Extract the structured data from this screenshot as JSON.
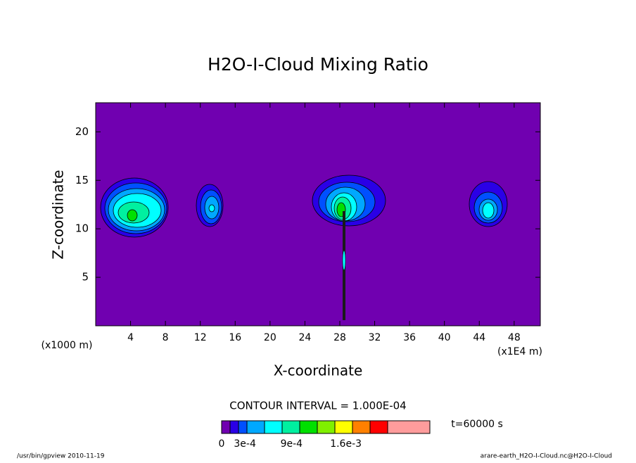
{
  "chart_data": {
    "type": "contour",
    "title": "H2O-I-Cloud Mixing Ratio",
    "x_label": "X-coordinate",
    "y_label": "Z-coordinate",
    "x_unit_left": "(x1000 m)",
    "x_unit_right": "(x1E4 m)",
    "xlim": [
      0,
      51
    ],
    "ylim": [
      0,
      23
    ],
    "xticks": [
      4,
      8,
      12,
      16,
      20,
      24,
      28,
      32,
      36,
      40,
      44,
      48
    ],
    "yticks": [
      5,
      10,
      15,
      20
    ],
    "contour_interval": "CONTOUR INTERVAL = 1.000E-04",
    "time": "t=60000 s",
    "colorbar": {
      "colors": [
        "#7000b0",
        "#2a00e6",
        "#0050ff",
        "#00a8ff",
        "#00ffff",
        "#00f0a0",
        "#00e000",
        "#80f000",
        "#ffff00",
        "#ff8000",
        "#ff0000",
        "#ff9c9c"
      ],
      "clim": [
        0,
        0.0025
      ],
      "ticks": [
        {
          "value": 0,
          "label": "0"
        },
        {
          "value": 0.0003,
          "label": "3e-4"
        },
        {
          "value": 0.0009,
          "label": "9e-4"
        },
        {
          "value": 0.0016,
          "label": "1.6e-3"
        }
      ]
    },
    "footer_left": "/usr/bin/gpview  2010-11-19",
    "footer_right": "arare-earth_H2O-I-Cloud.nc@H2O-I-Cloud"
  }
}
